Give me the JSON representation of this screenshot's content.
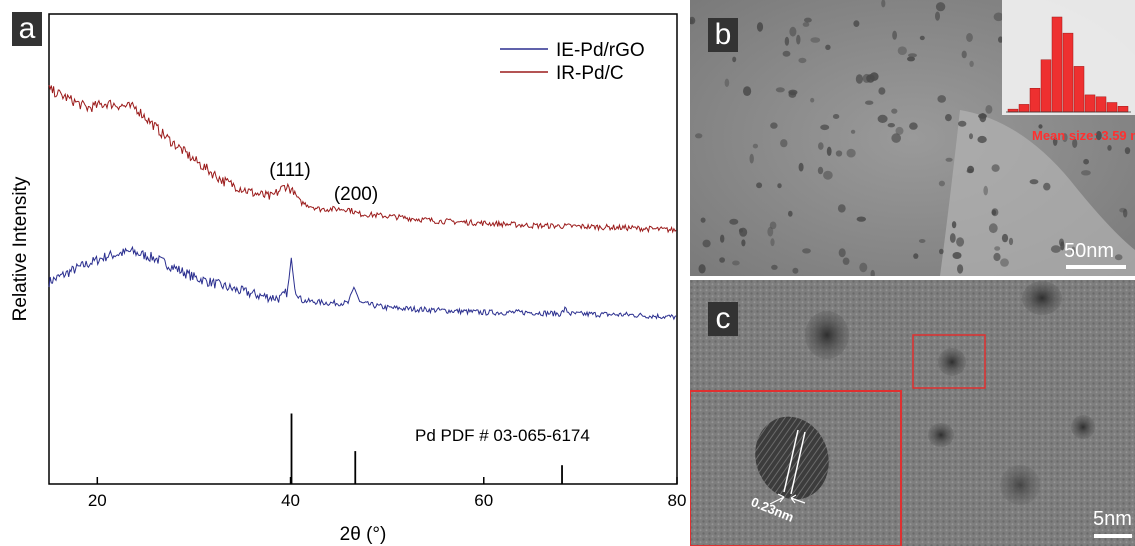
{
  "panel_a": {
    "label": "a",
    "reference_label": "Pd PDF # 03-065-6174",
    "peak_labels": [
      "(111)",
      "(200)"
    ],
    "colors": {
      "ie": "#2b2f8f",
      "ir": "#9b1b1b"
    }
  },
  "chart_data": {
    "type": "line",
    "xlabel": "2θ (°)",
    "ylabel": "Relative Intensity",
    "xlim": [
      15,
      80
    ],
    "ylim": [
      0,
      1
    ],
    "xticks": [
      20,
      40,
      60,
      80
    ],
    "legend_position": "top-right",
    "series": [
      {
        "name": "IE-Pd/rGO",
        "color": "#2b2f8f",
        "x": [
          15,
          18,
          21,
          23.5,
          26,
          30,
          34,
          37,
          39,
          39.7,
          40.1,
          40.5,
          41.2,
          44,
          46,
          46.6,
          47.2,
          50,
          55,
          60,
          65,
          68,
          68.4,
          69,
          75,
          80
        ],
        "y": [
          0.43,
          0.46,
          0.485,
          0.495,
          0.48,
          0.44,
          0.415,
          0.4,
          0.395,
          0.41,
          0.48,
          0.41,
          0.39,
          0.385,
          0.385,
          0.42,
          0.385,
          0.375,
          0.37,
          0.365,
          0.365,
          0.362,
          0.372,
          0.362,
          0.36,
          0.355
        ]
      },
      {
        "name": "IR-Pd/C",
        "color": "#9b1b1b",
        "x": [
          15,
          17,
          19,
          21,
          24,
          27,
          30,
          33,
          36,
          38,
          39.5,
          40.2,
          41,
          43,
          46,
          47,
          50,
          55,
          60,
          65,
          70,
          75,
          80
        ],
        "y": [
          0.84,
          0.82,
          0.8,
          0.81,
          0.8,
          0.74,
          0.69,
          0.645,
          0.62,
          0.61,
          0.635,
          0.625,
          0.6,
          0.585,
          0.585,
          0.575,
          0.57,
          0.56,
          0.555,
          0.55,
          0.548,
          0.545,
          0.54
        ]
      }
    ],
    "reference_peaks": [
      {
        "x": 40.1,
        "height": 0.15
      },
      {
        "x": 46.7,
        "height": 0.07
      },
      {
        "x": 68.1,
        "height": 0.04
      }
    ]
  },
  "panel_b": {
    "label": "b",
    "scale": "50nm",
    "mean_size": "Mean size: 3.59 nm",
    "histogram": [
      0.03,
      0.08,
      0.25,
      0.55,
      1.0,
      0.83,
      0.48,
      0.18,
      0.16,
      0.1,
      0.06
    ]
  },
  "panel_c": {
    "label": "c",
    "scale": "5nm",
    "lattice_spacing": "0.23nm"
  }
}
